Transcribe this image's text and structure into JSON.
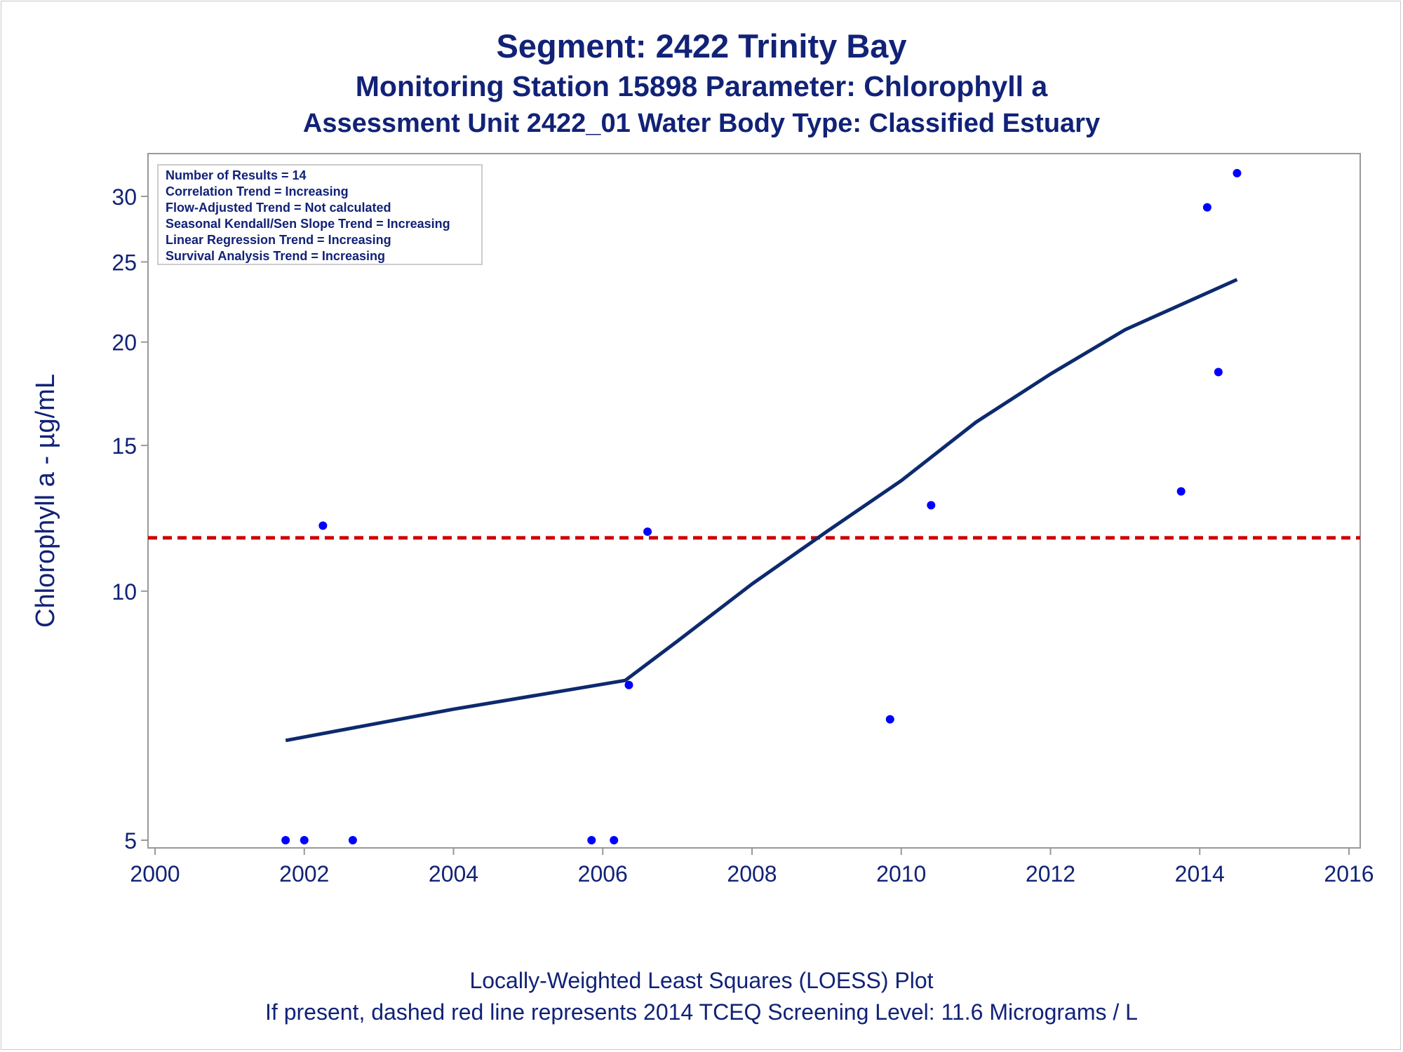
{
  "titles": {
    "line1": "Segment: 2422  Trinity Bay",
    "line2": "Monitoring Station 15898 Parameter: Chlorophyll a",
    "line3": "Assessment Unit 2422_01   Water Body Type: Classified Estuary"
  },
  "footnotes": {
    "line1": "Locally-Weighted Least Squares (LOESS) Plot",
    "line2": "If present, dashed red line represents 2014 TCEQ Screening Level: 11.6 Micrograms / L"
  },
  "stats_box": [
    "Number of Results = 14",
    "Correlation Trend = Increasing",
    "Flow-Adjusted Trend = Not calculated",
    "Seasonal Kendall/Sen Slope Trend = Increasing",
    "Linear Regression Trend = Increasing",
    "Survival Analysis Trend = Increasing"
  ],
  "colors": {
    "text": "#112277",
    "points": "#0000ff",
    "loess": "#0d2a6e",
    "screening": "#cc0000",
    "axis": "#999999"
  },
  "chart_data": {
    "type": "scatter",
    "ylabel": "Chlorophyll a -  µg/mL",
    "yscale": "log",
    "xlim": [
      2000,
      2016
    ],
    "ylim": [
      4.9,
      33
    ],
    "xticks": [
      2000,
      2002,
      2004,
      2006,
      2008,
      2010,
      2012,
      2014,
      2016
    ],
    "yticks": [
      5,
      10,
      15,
      20,
      25,
      30
    ],
    "grid": false,
    "points": [
      {
        "x": 2001.75,
        "y": 5
      },
      {
        "x": 2002.0,
        "y": 5
      },
      {
        "x": 2002.25,
        "y": 12.0
      },
      {
        "x": 2002.65,
        "y": 5
      },
      {
        "x": 2005.85,
        "y": 5
      },
      {
        "x": 2006.15,
        "y": 5
      },
      {
        "x": 2006.35,
        "y": 7.7
      },
      {
        "x": 2006.6,
        "y": 11.8
      },
      {
        "x": 2009.85,
        "y": 7.0
      },
      {
        "x": 2010.4,
        "y": 12.7
      },
      {
        "x": 2013.75,
        "y": 13.2
      },
      {
        "x": 2014.1,
        "y": 29.1
      },
      {
        "x": 2014.25,
        "y": 18.4
      },
      {
        "x": 2014.5,
        "y": 32.0
      }
    ],
    "loess": [
      {
        "x": 2001.75,
        "y": 6.6
      },
      {
        "x": 2004.0,
        "y": 7.2
      },
      {
        "x": 2006.3,
        "y": 7.8
      },
      {
        "x": 2007.0,
        "y": 8.7
      },
      {
        "x": 2008.0,
        "y": 10.2
      },
      {
        "x": 2009.0,
        "y": 11.8
      },
      {
        "x": 2010.0,
        "y": 13.6
      },
      {
        "x": 2011.0,
        "y": 16.0
      },
      {
        "x": 2012.0,
        "y": 18.3
      },
      {
        "x": 2013.0,
        "y": 20.7
      },
      {
        "x": 2014.5,
        "y": 23.8
      }
    ],
    "screening_level": 11.6
  }
}
